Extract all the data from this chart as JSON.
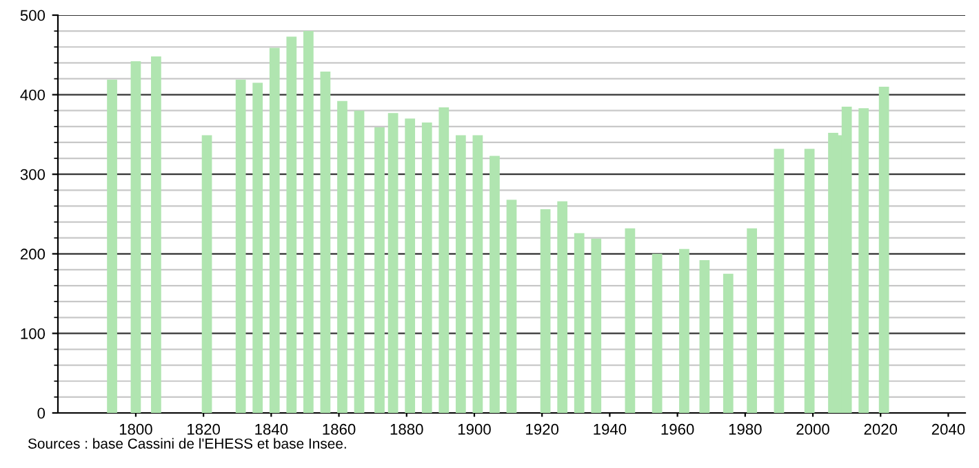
{
  "chart_data": {
    "type": "bar",
    "x": [
      1793,
      1800,
      1806,
      1821,
      1831,
      1836,
      1841,
      1846,
      1851,
      1856,
      1861,
      1866,
      1872,
      1876,
      1881,
      1886,
      1891,
      1896,
      1901,
      1906,
      1911,
      1921,
      1926,
      1931,
      1936,
      1946,
      1954,
      1962,
      1968,
      1975,
      1982,
      1990,
      1999,
      2006,
      2008,
      2010,
      2015,
      2020,
      2021
    ],
    "values": [
      419,
      442,
      448,
      349,
      419,
      415,
      459,
      473,
      480,
      429,
      392,
      380,
      359,
      377,
      370,
      365,
      384,
      349,
      349,
      323,
      268,
      256,
      266,
      226,
      219,
      232,
      200,
      206,
      192,
      175,
      232,
      332,
      332,
      352,
      349,
      385,
      383,
      null,
      410
    ],
    "color": "#b0e5b0",
    "xlim": [
      1777,
      2045
    ],
    "xticks": [
      1800,
      1820,
      1840,
      1860,
      1880,
      1900,
      1920,
      1940,
      1960,
      1980,
      2000,
      2020,
      2040
    ],
    "ylim": [
      0,
      500
    ],
    "yticks": [
      0,
      100,
      200,
      300,
      400,
      500
    ],
    "grid": "y",
    "annotations": [
      "Sources : base Cassini de l'EHESS et base Insee."
    ]
  }
}
